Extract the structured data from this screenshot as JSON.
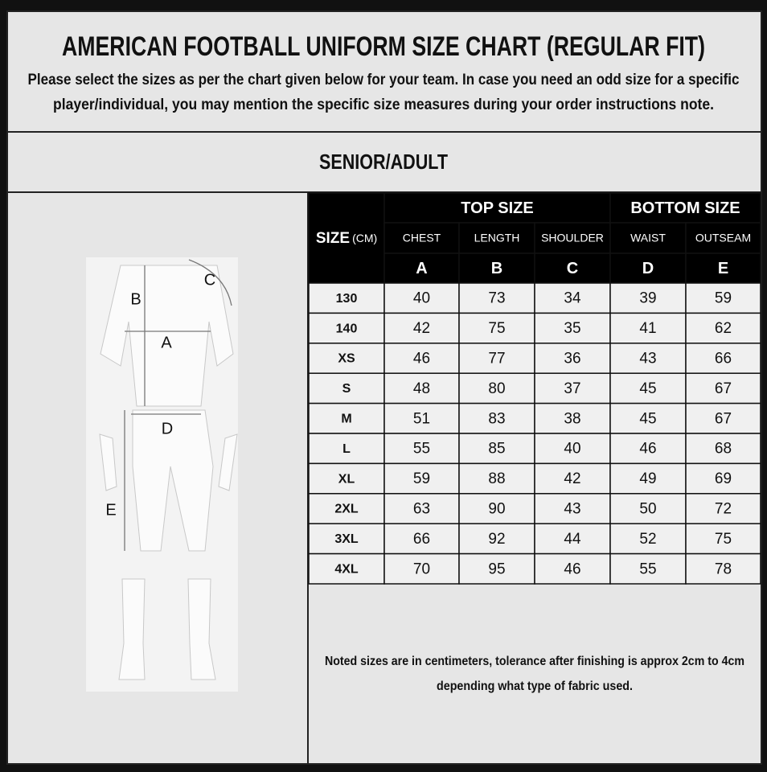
{
  "header": {
    "title": "AMERICAN FOOTBALL UNIFORM SIZE CHART (REGULAR FIT)",
    "subtitle_lines": [
      "Please select the sizes as per the chart given below for your team. In case you need an odd size for a specific",
      "player/individual, you may mention the specific size measures during your order instructions note."
    ]
  },
  "section": "SENIOR/ADULT",
  "illustration": {
    "labels": [
      "A",
      "B",
      "C",
      "D",
      "E"
    ]
  },
  "table": {
    "size_label": "SIZE",
    "size_unit": "(CM)",
    "groups": [
      "TOP SIZE",
      "BOTTOM SIZE"
    ],
    "columns": [
      "CHEST",
      "LENGTH",
      "SHOULDER",
      "WAIST",
      "OUTSEAM"
    ],
    "codes": [
      "A",
      "B",
      "C",
      "D",
      "E"
    ],
    "rows": [
      [
        "130",
        40,
        73,
        34,
        39,
        59
      ],
      [
        "140",
        42,
        75,
        35,
        41,
        62
      ],
      [
        "XS",
        46,
        77,
        36,
        43,
        66
      ],
      [
        "S",
        48,
        80,
        37,
        45,
        67
      ],
      [
        "M",
        51,
        83,
        38,
        45,
        67
      ],
      [
        "L",
        55,
        85,
        40,
        46,
        68
      ],
      [
        "XL",
        59,
        88,
        42,
        49,
        69
      ],
      [
        "2XL",
        63,
        90,
        43,
        50,
        72
      ],
      [
        "3XL",
        66,
        92,
        44,
        52,
        75
      ],
      [
        "4XL",
        70,
        95,
        46,
        55,
        78
      ]
    ]
  },
  "note_lines": [
    "Noted sizes are in centimeters, tolerance after finishing is approx 2cm to 4cm",
    "depending what type of fabric used."
  ]
}
